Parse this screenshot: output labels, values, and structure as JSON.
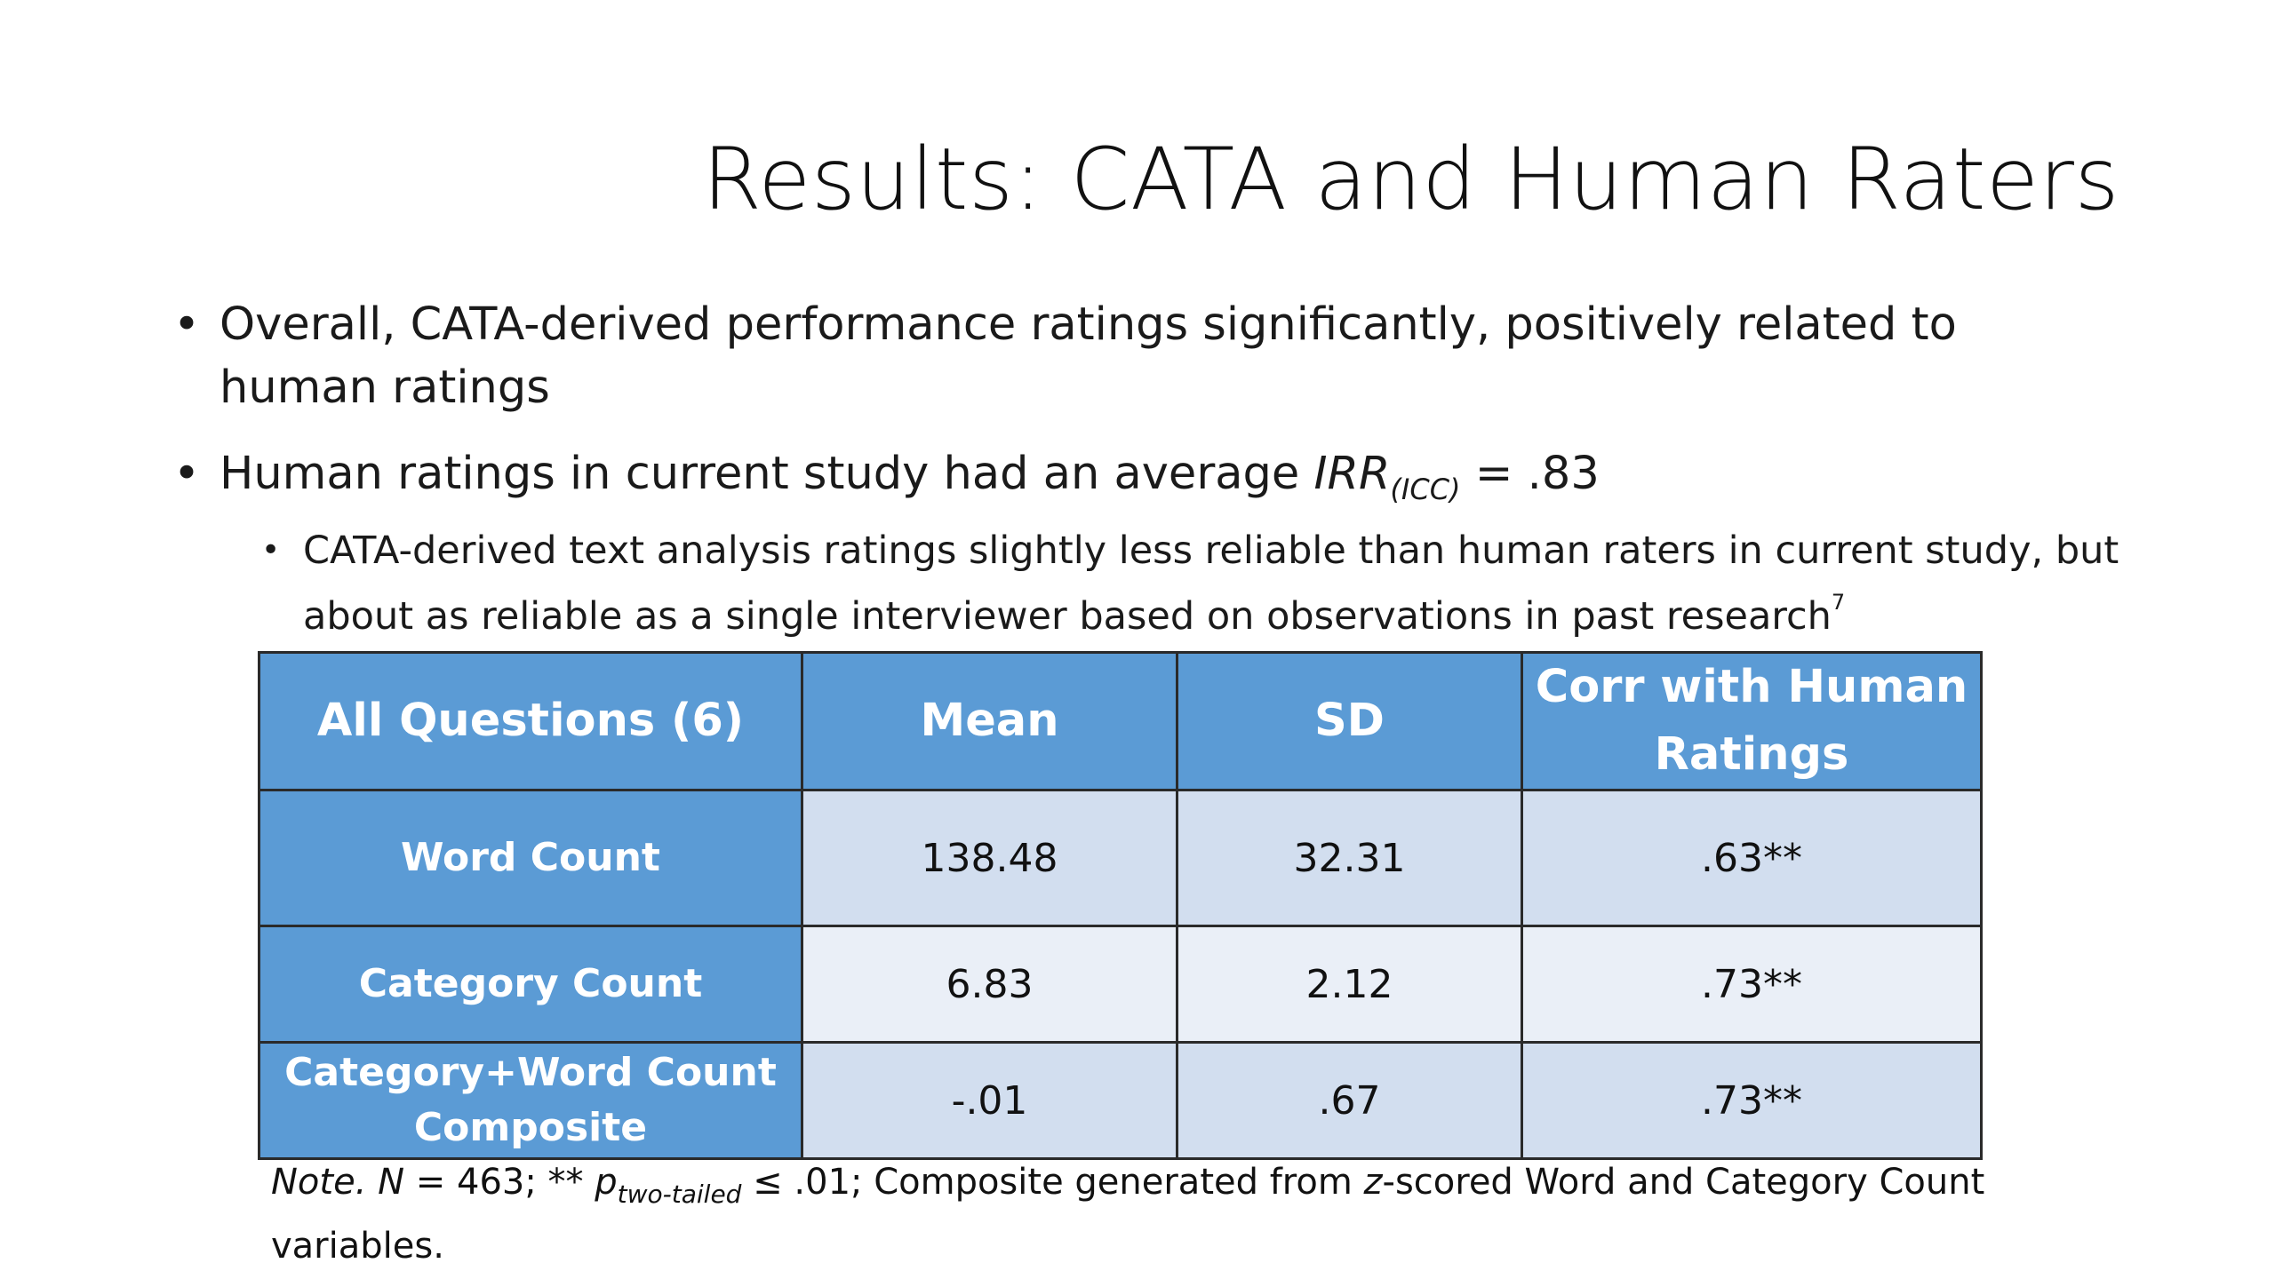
{
  "slide": {
    "title": "Results: CATA and Human Raters"
  },
  "bullets": [
    {
      "marker": "•",
      "text": "Overall, CATA-derived performance ratings significantly, positively related to human ratings"
    },
    {
      "marker": "•",
      "text_before": "Human ratings in current study had an average ",
      "irr_label": "IRR",
      "irr_subscript": "(ICC)",
      "text_after": " = .83",
      "sub_bullets": [
        {
          "marker": "•",
          "text": "CATA-derived text analysis ratings slightly less reliable than human raters in current study, but about as reliable as a single interviewer based on observations in past research",
          "superscript": "7"
        }
      ]
    }
  ],
  "table": {
    "headers": [
      "All Questions (6)",
      "Mean",
      "SD",
      "Corr with Human Ratings"
    ],
    "rows": [
      {
        "label": "Word Count",
        "mean": "138.48",
        "sd": "32.31",
        "corr": ".63**"
      },
      {
        "label": "Category Count",
        "mean": "6.83",
        "sd": "2.12",
        "corr": ".73**"
      },
      {
        "label": "Category+Word Count Composite",
        "mean": "-.01",
        "sd": ".67",
        "corr": ".73**"
      }
    ],
    "colors": {
      "header_bg": "#5b9bd5",
      "row_light": "#eaeff7",
      "row_dark": "#d2deef"
    }
  },
  "note": {
    "label": "Note.",
    "n_label": "N",
    "n_text": " = 463; ** ",
    "p_label": "p",
    "p_subscript": "two-tailed",
    "p_text": " ≤ .01; Composite generated from ",
    "z_label": "z",
    "rest": "-scored Word and Category Count variables."
  }
}
